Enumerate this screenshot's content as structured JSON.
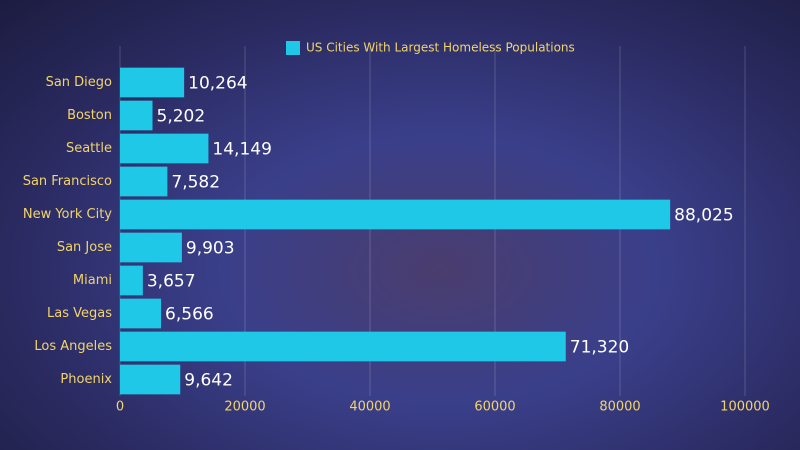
{
  "chart_data": {
    "type": "bar",
    "orientation": "horizontal",
    "categories": [
      "San Diego",
      "Boston",
      "Seattle",
      "San Francisco",
      "New York City",
      "San Jose",
      "Miami",
      "Las Vegas",
      "Los Angeles",
      "Phoenix"
    ],
    "series": [
      {
        "name": "US Cities With Largest Homeless Populations",
        "color": "#1ec8e6",
        "values": [
          10264,
          5202,
          14149,
          7582,
          88025,
          9903,
          3657,
          6566,
          71320,
          9642
        ],
        "value_labels": [
          "10,264",
          "5,202",
          "14,149",
          "7,582",
          "88,025",
          "9,903",
          "3,657",
          "6,566",
          "71,320",
          "9,642"
        ]
      }
    ],
    "xlim": [
      0,
      100000
    ],
    "xticks": [
      0,
      20000,
      40000,
      60000,
      80000,
      100000
    ],
    "grid": true,
    "legend": "top"
  }
}
